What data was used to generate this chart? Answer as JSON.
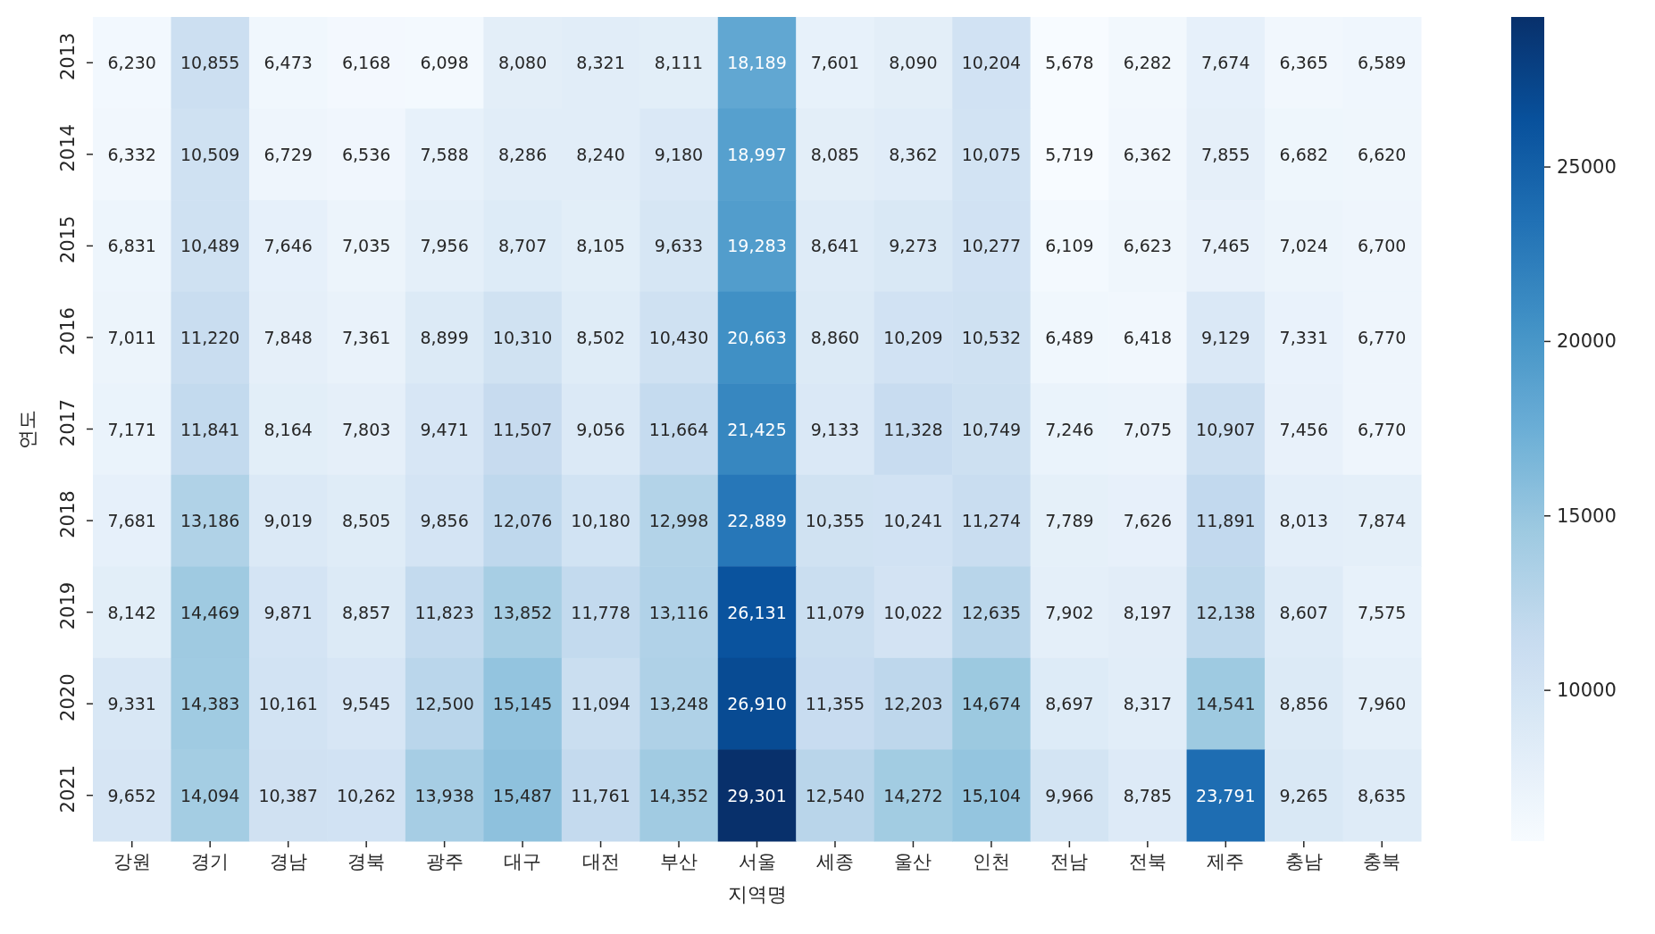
{
  "chart_data": {
    "type": "heatmap",
    "xlabel": "지역명",
    "ylabel": "연도",
    "categories": [
      "강원",
      "경기",
      "경남",
      "경북",
      "광주",
      "대구",
      "대전",
      "부산",
      "서울",
      "세종",
      "울산",
      "인천",
      "전남",
      "전북",
      "제주",
      "충남",
      "충북"
    ],
    "y_categories": [
      "2013",
      "2014",
      "2015",
      "2016",
      "2017",
      "2018",
      "2019",
      "2020",
      "2021"
    ],
    "cells": [
      [
        6230,
        10855,
        6473,
        6168,
        6098,
        8080,
        8321,
        8111,
        18189,
        7601,
        8090,
        10204,
        5678,
        6282,
        7674,
        6365,
        6589
      ],
      [
        6332,
        10509,
        6729,
        6536,
        7588,
        8286,
        8240,
        9180,
        18997,
        8085,
        8362,
        10075,
        5719,
        6362,
        7855,
        6682,
        6620
      ],
      [
        6831,
        10489,
        7646,
        7035,
        7956,
        8707,
        8105,
        9633,
        19283,
        8641,
        9273,
        10277,
        6109,
        6623,
        7465,
        7024,
        6700
      ],
      [
        7011,
        11220,
        7848,
        7361,
        8899,
        10310,
        8502,
        10430,
        20663,
        8860,
        10209,
        10532,
        6489,
        6418,
        9129,
        7331,
        6770
      ],
      [
        7171,
        11841,
        8164,
        7803,
        9471,
        11507,
        9056,
        11664,
        21425,
        9133,
        11328,
        10749,
        7246,
        7075,
        10907,
        7456,
        6770
      ],
      [
        7681,
        13186,
        9019,
        8505,
        9856,
        12076,
        10180,
        12998,
        22889,
        10355,
        10241,
        11274,
        7789,
        7626,
        11891,
        8013,
        7874
      ],
      [
        8142,
        14469,
        9871,
        8857,
        11823,
        13852,
        11778,
        13116,
        26131,
        11079,
        10022,
        12635,
        7902,
        8197,
        12138,
        8607,
        7575
      ],
      [
        9331,
        14383,
        10161,
        9545,
        12500,
        15145,
        11094,
        13248,
        26910,
        11355,
        12203,
        14674,
        8697,
        8317,
        14541,
        8856,
        7960
      ],
      [
        9652,
        14094,
        10387,
        10262,
        13938,
        15487,
        11761,
        14352,
        29301,
        12540,
        14272,
        15104,
        9966,
        8785,
        23791,
        9265,
        8635
      ]
    ],
    "cell_labels": [
      [
        "6,230",
        "10,855",
        "6,473",
        "6,168",
        "6,098",
        "8,080",
        "8,321",
        "8,111",
        "18,189",
        "7,601",
        "8,090",
        "10,204",
        "5,678",
        "6,282",
        "7,674",
        "6,365",
        "6,589"
      ],
      [
        "6,332",
        "10,509",
        "6,729",
        "6,536",
        "7,588",
        "8,286",
        "8,240",
        "9,180",
        "18,997",
        "8,085",
        "8,362",
        "10,075",
        "5,719",
        "6,362",
        "7,855",
        "6,682",
        "6,620"
      ],
      [
        "6,831",
        "10,489",
        "7,646",
        "7,035",
        "7,956",
        "8,707",
        "8,105",
        "9,633",
        "19,283",
        "8,641",
        "9,273",
        "10,277",
        "6,109",
        "6,623",
        "7,465",
        "7,024",
        "6,700"
      ],
      [
        "7,011",
        "11,220",
        "7,848",
        "7,361",
        "8,899",
        "10,310",
        "8,502",
        "10,430",
        "20,663",
        "8,860",
        "10,209",
        "10,532",
        "6,489",
        "6,418",
        "9,129",
        "7,331",
        "6,770"
      ],
      [
        "7,171",
        "11,841",
        "8,164",
        "7,803",
        "9,471",
        "11,507",
        "9,056",
        "11,664",
        "21,425",
        "9,133",
        "11,328",
        "10,749",
        "7,246",
        "7,075",
        "10,907",
        "7,456",
        "6,770"
      ],
      [
        "7,681",
        "13,186",
        "9,019",
        "8,505",
        "9,856",
        "12,076",
        "10,180",
        "12,998",
        "22,889",
        "10,355",
        "10,241",
        "11,274",
        "7,789",
        "7,626",
        "11,891",
        "8,013",
        "7,874"
      ],
      [
        "8,142",
        "14,469",
        "9,871",
        "8,857",
        "11,823",
        "13,852",
        "11,778",
        "13,116",
        "26,131",
        "11,079",
        "10,022",
        "12,635",
        "7,902",
        "8,197",
        "12,138",
        "8,607",
        "7,575"
      ],
      [
        "9,331",
        "14,383",
        "10,161",
        "9,545",
        "12,500",
        "15,145",
        "11,094",
        "13,248",
        "26,910",
        "11,355",
        "12,203",
        "14,674",
        "8,697",
        "8,317",
        "14,541",
        "8,856",
        "7,960"
      ],
      [
        "9,652",
        "14,094",
        "10,387",
        "10,262",
        "13,938",
        "15,487",
        "11,761",
        "14,352",
        "29,301",
        "12,540",
        "14,272",
        "15,104",
        "9,966",
        "8,785",
        "23,791",
        "9,265",
        "8,635"
      ]
    ],
    "clim": [
      5678,
      29301
    ],
    "cticks": [
      10000,
      15000,
      20000,
      25000
    ]
  }
}
